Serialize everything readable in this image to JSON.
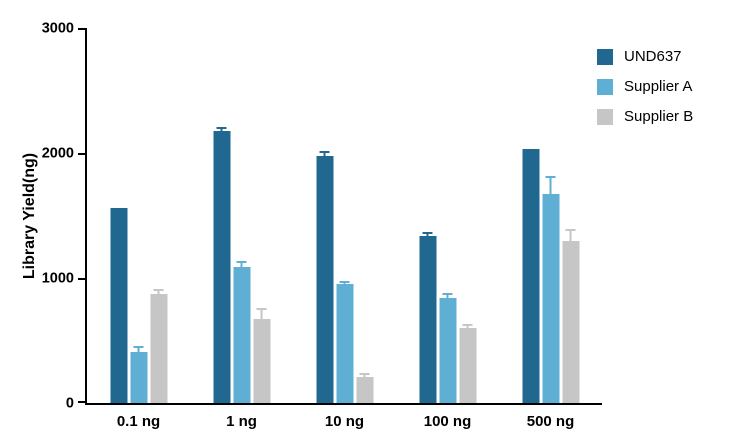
{
  "chart_data": {
    "type": "bar",
    "title": "",
    "xlabel": "",
    "ylabel": "Library Yield(ng)",
    "ylim": [
      0,
      3000
    ],
    "yticks": [
      0,
      1000,
      2000,
      3000
    ],
    "grid": false,
    "legend_position": "top-right",
    "categories": [
      "0.1 ng",
      "1 ng",
      "10 ng",
      "100 ng",
      "500 ng"
    ],
    "series": [
      {
        "name": "UND637",
        "color": "#20688f",
        "values": [
          1560,
          2180,
          1980,
          1340,
          2030
        ],
        "errors": [
          0,
          30,
          35,
          30,
          0
        ]
      },
      {
        "name": "Supplier A",
        "color": "#5fafd4",
        "values": [
          410,
          1090,
          950,
          840,
          1670
        ],
        "errors": [
          50,
          45,
          30,
          40,
          145
        ]
      },
      {
        "name": "Supplier B",
        "color": "#c6c6c6",
        "values": [
          870,
          670,
          210,
          600,
          1300
        ],
        "errors": [
          40,
          90,
          30,
          30,
          90
        ]
      }
    ]
  }
}
